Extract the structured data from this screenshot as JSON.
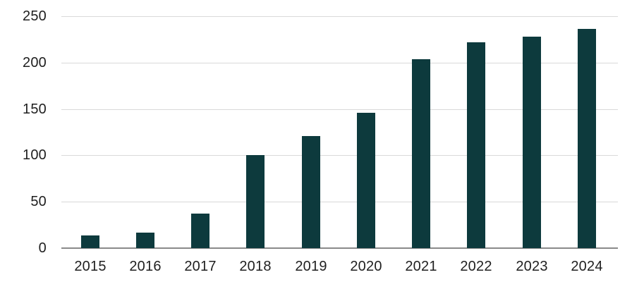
{
  "chart": {
    "background": "#ffffff",
    "colors": {
      "bar": "#0d3a3d",
      "gridline": "#d9d9d9",
      "axis_line": "#8a8a8a",
      "tick_label": "#1f1f1f"
    }
  },
  "chart_data": {
    "type": "bar",
    "categories": [
      "2015",
      "2016",
      "2017",
      "2018",
      "2019",
      "2020",
      "2021",
      "2022",
      "2023",
      "2024"
    ],
    "values": [
      14,
      17,
      37,
      100,
      121,
      146,
      204,
      222,
      228,
      236
    ],
    "title": "",
    "xlabel": "",
    "ylabel": "",
    "ylim": [
      0,
      250
    ],
    "yticks": [
      0,
      50,
      100,
      150,
      200,
      250
    ],
    "grid": true,
    "legend": false,
    "legend_position": "none"
  }
}
